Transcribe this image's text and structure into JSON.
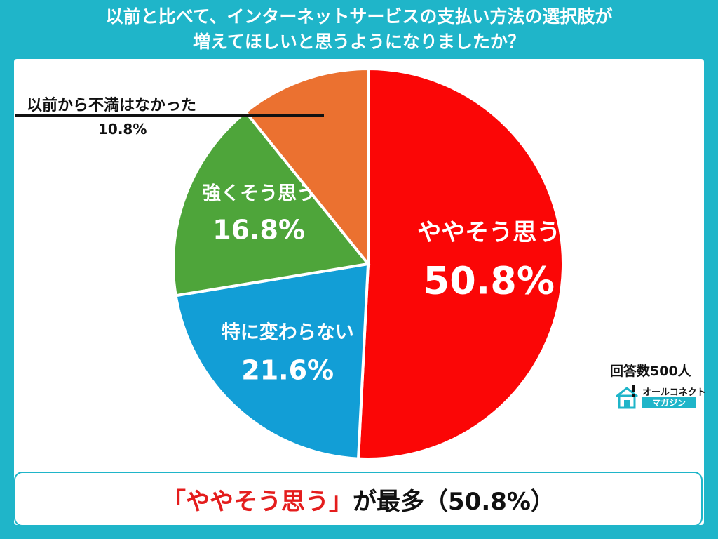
{
  "title": {
    "line1": "以前と比べて、インターネットサービスの支払い方法の選択肢が",
    "line2": "増えてほしいと思うようになりましたか？"
  },
  "chart_data": {
    "type": "pie",
    "slices": [
      {
        "label": "ややそう思う",
        "value": 50.8,
        "display": "50.8%",
        "color": "#fb0606"
      },
      {
        "label": "特に変わらない",
        "value": 21.6,
        "display": "21.6%",
        "color": "#129ed6"
      },
      {
        "label": "強くそう思う",
        "value": 16.8,
        "display": "16.8%",
        "color": "#4ea53a"
      },
      {
        "label": "以前から不満はなかった",
        "value": 10.8,
        "display": "10.8%",
        "color": "#eb7130"
      }
    ]
  },
  "respondents": "回答数500人",
  "brand": {
    "top": "オールコネクト",
    "bottom": "マガジン"
  },
  "conclusion": {
    "highlight": "「ややそう思う」",
    "rest": "が最多（50.8%）"
  }
}
